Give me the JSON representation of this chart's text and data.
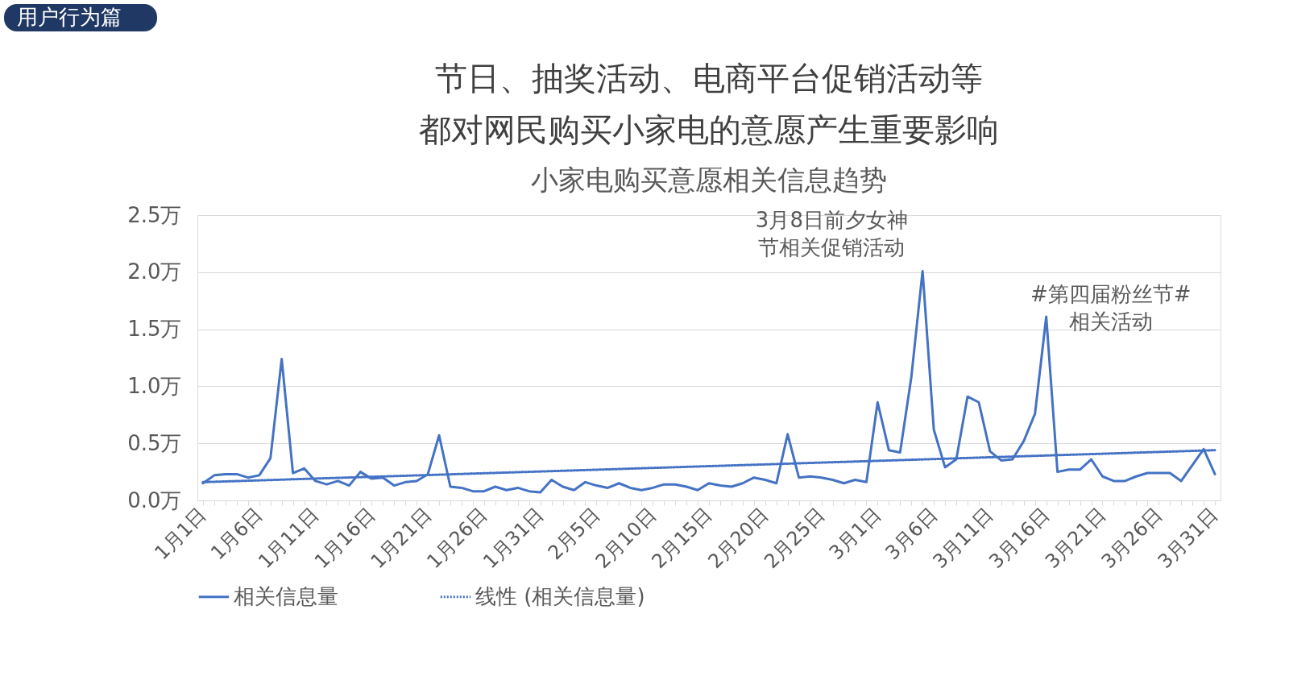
{
  "chart_data": {
    "type": "line",
    "title": "节日、抽奖活动、电商平台促销活动等都对网民购买小家电的意愿产生重要影响",
    "subtitle": "小家电购买意愿相关信息趋势",
    "categories": [
      "1月1日",
      null,
      null,
      null,
      null,
      "1月6日",
      null,
      null,
      null,
      null,
      "1月11日",
      null,
      null,
      null,
      null,
      "1月16日",
      null,
      null,
      null,
      null,
      "1月21日",
      null,
      null,
      null,
      null,
      "1月26日",
      null,
      null,
      null,
      null,
      "1月31日",
      null,
      null,
      null,
      null,
      "2月5日",
      null,
      null,
      null,
      null,
      "2月10日",
      null,
      null,
      null,
      null,
      "2月15日",
      null,
      null,
      null,
      null,
      "2月20日",
      null,
      null,
      null,
      null,
      "2月25日",
      null,
      null,
      null,
      null,
      "3月1日",
      null,
      null,
      null,
      null,
      "3月6日",
      null,
      null,
      null,
      null,
      "3月11日",
      null,
      null,
      null,
      null,
      "3月16日",
      null,
      null,
      null,
      null,
      "3月21日",
      null,
      null,
      null,
      null,
      "3月26日",
      null,
      null,
      null,
      null,
      "3月31日"
    ],
    "series": [
      {
        "name": "相关信息量",
        "color": "#4472c4",
        "line_style": "solid",
        "values": [
          0.15,
          0.22,
          0.23,
          0.23,
          0.2,
          0.22,
          0.37,
          1.24,
          0.24,
          0.28,
          0.17,
          0.14,
          0.17,
          0.13,
          0.25,
          0.19,
          0.2,
          0.13,
          0.16,
          0.17,
          0.23,
          0.57,
          0.12,
          0.11,
          0.08,
          0.08,
          0.12,
          0.09,
          0.11,
          0.08,
          0.07,
          0.18,
          0.12,
          0.09,
          0.16,
          0.13,
          0.11,
          0.15,
          0.11,
          0.09,
          0.11,
          0.14,
          0.14,
          0.12,
          0.09,
          0.15,
          0.13,
          0.12,
          0.15,
          0.2,
          0.18,
          0.15,
          0.58,
          0.2,
          0.21,
          0.2,
          0.18,
          0.15,
          0.18,
          0.16,
          0.86,
          0.44,
          0.42,
          1.08,
          2.01,
          0.62,
          0.29,
          0.36,
          0.91,
          0.86,
          0.43,
          0.35,
          0.36,
          0.52,
          0.76,
          1.61,
          0.25,
          0.27,
          0.27,
          0.36,
          0.21,
          0.17,
          0.17,
          0.21,
          0.24,
          0.24,
          0.24,
          0.17,
          0.31,
          0.45,
          0.23
        ]
      },
      {
        "name": "线性 (相关信息量)",
        "color": "#4472c4",
        "line_style": "dotted",
        "type": "line",
        "x": [
          "1月1日",
          "3月31日"
        ],
        "values": [
          0.16,
          0.44
        ]
      }
    ],
    "ylim": [
      0,
      2.5
    ],
    "yticks": [
      {
        "value": 0,
        "label": "0.0万"
      },
      {
        "value": 0.5,
        "label": "0.5万"
      },
      {
        "value": 1,
        "label": "1.0万"
      },
      {
        "value": 1.5,
        "label": "1.5万"
      },
      {
        "value": 2,
        "label": "2.0万"
      },
      {
        "value": 2.5,
        "label": "2.5万"
      }
    ],
    "grid": "y",
    "legend": "bottom",
    "marker": "none",
    "annotations": [
      "用户行为篇",
      "3月8日前夕女神节相关促销活动",
      {
        "text": "#第四届粉丝节#相关活动",
        "x": "3月16日",
        "y": 1.61
      }
    ]
  }
}
